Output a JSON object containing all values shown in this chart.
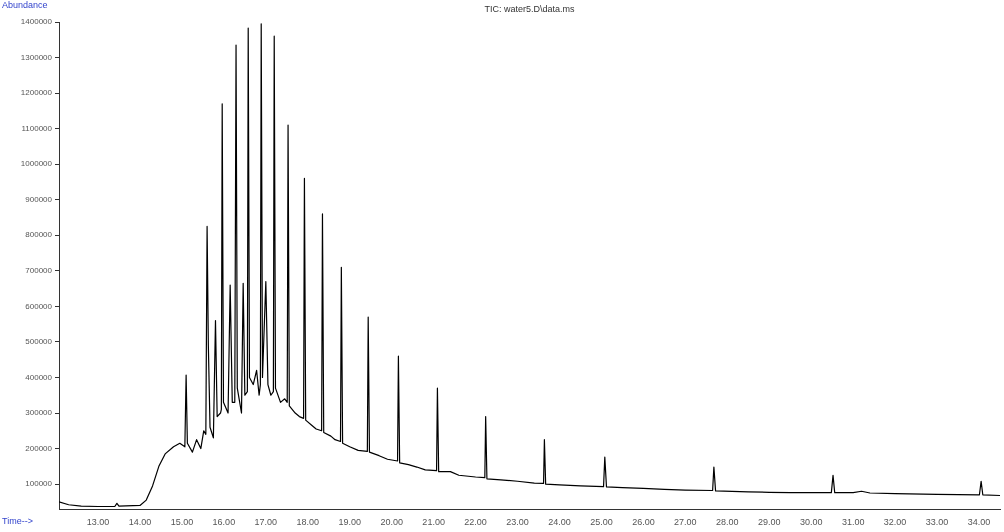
{
  "chart_data": {
    "type": "line",
    "title": "TIC: water5.D\\data.ms",
    "xlabel": "Time-->",
    "ylabel": "Abundance",
    "color": "#000000",
    "marker": "none",
    "line_style": "solid",
    "grid": false,
    "legend": false,
    "xlim": [
      12.07,
      34.5
    ],
    "ylim": [
      30000,
      1400000
    ],
    "xticks": [
      {
        "value": 13,
        "label": "13.00"
      },
      {
        "value": 14,
        "label": "14.00"
      },
      {
        "value": 15,
        "label": "15.00"
      },
      {
        "value": 16,
        "label": "16.00"
      },
      {
        "value": 17,
        "label": "17.00"
      },
      {
        "value": 18,
        "label": "18.00"
      },
      {
        "value": 19,
        "label": "19.00"
      },
      {
        "value": 20,
        "label": "20.00"
      },
      {
        "value": 21,
        "label": "21.00"
      },
      {
        "value": 22,
        "label": "22.00"
      },
      {
        "value": 23,
        "label": "23.00"
      },
      {
        "value": 24,
        "label": "24.00"
      },
      {
        "value": 25,
        "label": "25.00"
      },
      {
        "value": 26,
        "label": "26.00"
      },
      {
        "value": 27,
        "label": "27.00"
      },
      {
        "value": 28,
        "label": "28.00"
      },
      {
        "value": 29,
        "label": "29.00"
      },
      {
        "value": 30,
        "label": "30.00"
      },
      {
        "value": 31,
        "label": "31.00"
      },
      {
        "value": 32,
        "label": "32.00"
      },
      {
        "value": 33,
        "label": "33.00"
      },
      {
        "value": 34,
        "label": "34.00"
      }
    ],
    "yticks": [
      100000,
      200000,
      300000,
      400000,
      500000,
      600000,
      700000,
      800000,
      900000,
      1000000,
      1100000,
      1200000,
      1300000,
      1400000
    ],
    "x": [
      12.07,
      12.3,
      12.6,
      13.0,
      13.4,
      13.45,
      13.5,
      14.0,
      14.15,
      14.3,
      14.45,
      14.6,
      14.8,
      14.95,
      15.07,
      15.1,
      15.13,
      15.25,
      15.35,
      15.45,
      15.52,
      15.57,
      15.6,
      15.63,
      15.67,
      15.75,
      15.8,
      15.84,
      15.92,
      15.94,
      15.96,
      15.99,
      16.1,
      16.15,
      16.2,
      16.26,
      16.29,
      16.32,
      16.42,
      16.46,
      16.5,
      16.56,
      16.58,
      16.61,
      16.7,
      16.78,
      16.84,
      16.87,
      16.89,
      16.92,
      17.0,
      17.05,
      17.12,
      17.18,
      17.2,
      17.23,
      17.35,
      17.45,
      17.51,
      17.53,
      17.56,
      17.7,
      17.8,
      17.9,
      17.92,
      17.95,
      18.1,
      18.2,
      18.33,
      18.35,
      18.38,
      18.55,
      18.65,
      18.78,
      18.8,
      18.83,
      19.0,
      19.2,
      19.42,
      19.44,
      19.47,
      19.7,
      19.9,
      20.14,
      20.16,
      20.19,
      20.4,
      20.6,
      20.8,
      21.07,
      21.09,
      21.12,
      21.4,
      21.6,
      22.0,
      22.22,
      22.24,
      22.27,
      22.6,
      23.0,
      23.4,
      23.62,
      23.64,
      23.67,
      24.0,
      24.5,
      25.05,
      25.08,
      25.12,
      25.5,
      26.0,
      26.5,
      27.0,
      27.65,
      27.68,
      27.72,
      28.5,
      29.0,
      29.5,
      30.48,
      30.52,
      30.56,
      31.0,
      31.2,
      31.4,
      32.0,
      33.0,
      34.01,
      34.05,
      34.09,
      34.5
    ],
    "values": [
      50000,
      42000,
      38000,
      37000,
      37000,
      46000,
      38000,
      40000,
      55000,
      95000,
      150000,
      185000,
      205000,
      215000,
      205000,
      407000,
      215000,
      190000,
      225000,
      200000,
      250000,
      240000,
      825000,
      490000,
      260000,
      230000,
      560000,
      290000,
      300000,
      310000,
      1170000,
      330000,
      300000,
      660000,
      330000,
      330000,
      1335000,
      370000,
      300000,
      665000,
      350000,
      360000,
      1383000,
      400000,
      380000,
      420000,
      350000,
      380000,
      1395000,
      400000,
      670000,
      380000,
      350000,
      360000,
      1360000,
      370000,
      330000,
      340000,
      330000,
      1110000,
      320000,
      300000,
      290000,
      285000,
      960000,
      280000,
      265000,
      255000,
      250000,
      860000,
      245000,
      235000,
      225000,
      220000,
      710000,
      215000,
      205000,
      195000,
      192000,
      570000,
      190000,
      180000,
      170000,
      165000,
      460000,
      160000,
      155000,
      148000,
      140000,
      138000,
      370000,
      135000,
      135000,
      125000,
      120000,
      118000,
      290000,
      115000,
      112000,
      108000,
      103000,
      102000,
      225000,
      100000,
      98000,
      95000,
      93000,
      176000,
      92000,
      90000,
      88000,
      85000,
      83000,
      82000,
      148000,
      81000,
      78000,
      77000,
      76000,
      76000,
      125000,
      76000,
      76000,
      80000,
      75000,
      73000,
      71000,
      70000,
      108000,
      70000,
      68000
    ]
  }
}
